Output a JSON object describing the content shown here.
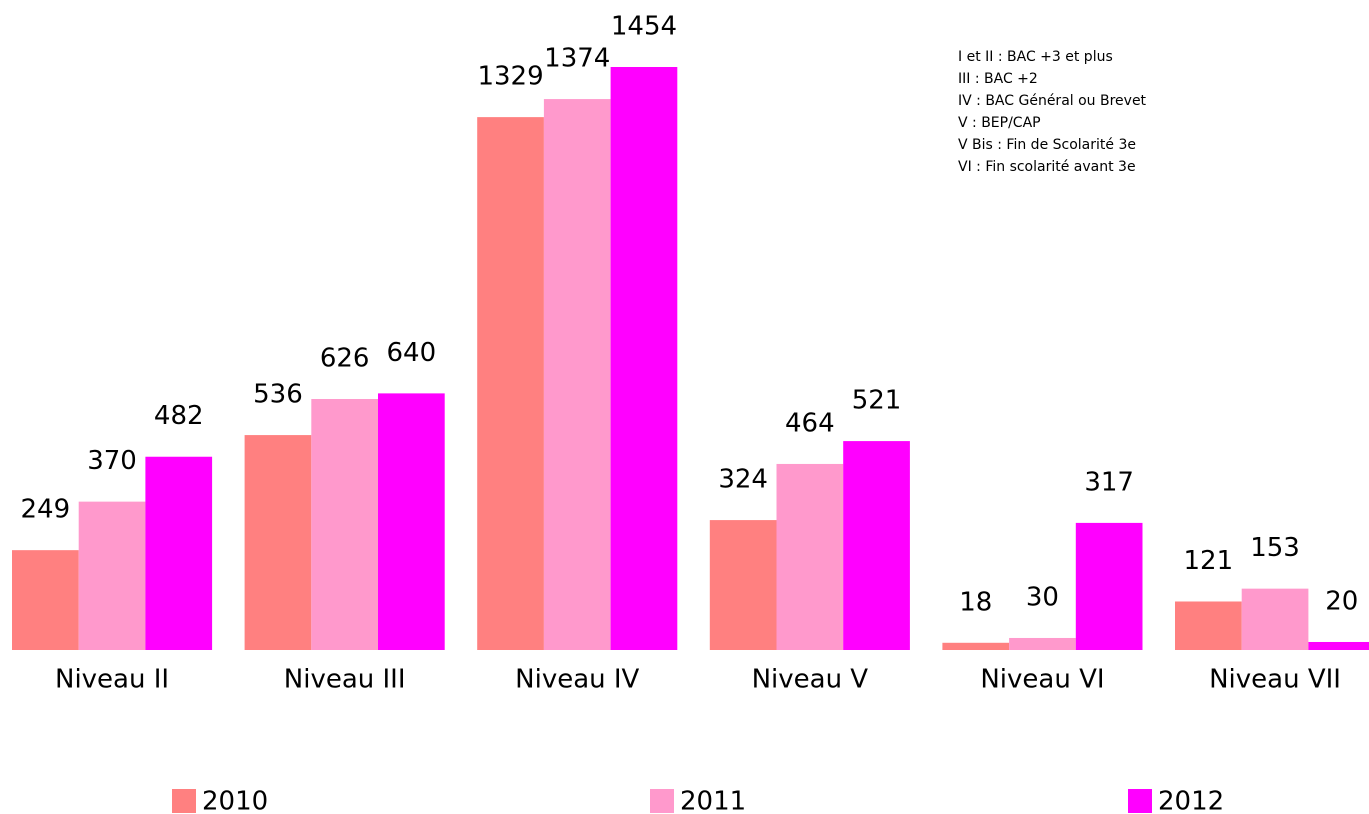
{
  "chart_data": {
    "type": "bar",
    "categories": [
      "Niveau II",
      "Niveau III",
      "Niveau IV",
      "Niveau V",
      "Niveau VI",
      "Niveau VII"
    ],
    "series": [
      {
        "name": "2010",
        "color": "#ff8080",
        "values": [
          249,
          536,
          1329,
          324,
          18,
          121
        ]
      },
      {
        "name": "2011",
        "color": "#ff99cc",
        "values": [
          370,
          626,
          1374,
          464,
          30,
          153
        ]
      },
      {
        "name": "2012",
        "color": "#ff00ff",
        "values": [
          482,
          640,
          1454,
          521,
          317,
          20
        ]
      }
    ],
    "annotations": [
      "I et II : BAC +3 et plus",
      "III : BAC +2",
      "IV : BAC Général ou Brevet",
      "V : BEP/CAP",
      "V Bis : Fin de Scolarité 3e",
      "VI : Fin scolarité avant 3e"
    ],
    "legend": "bottom"
  }
}
